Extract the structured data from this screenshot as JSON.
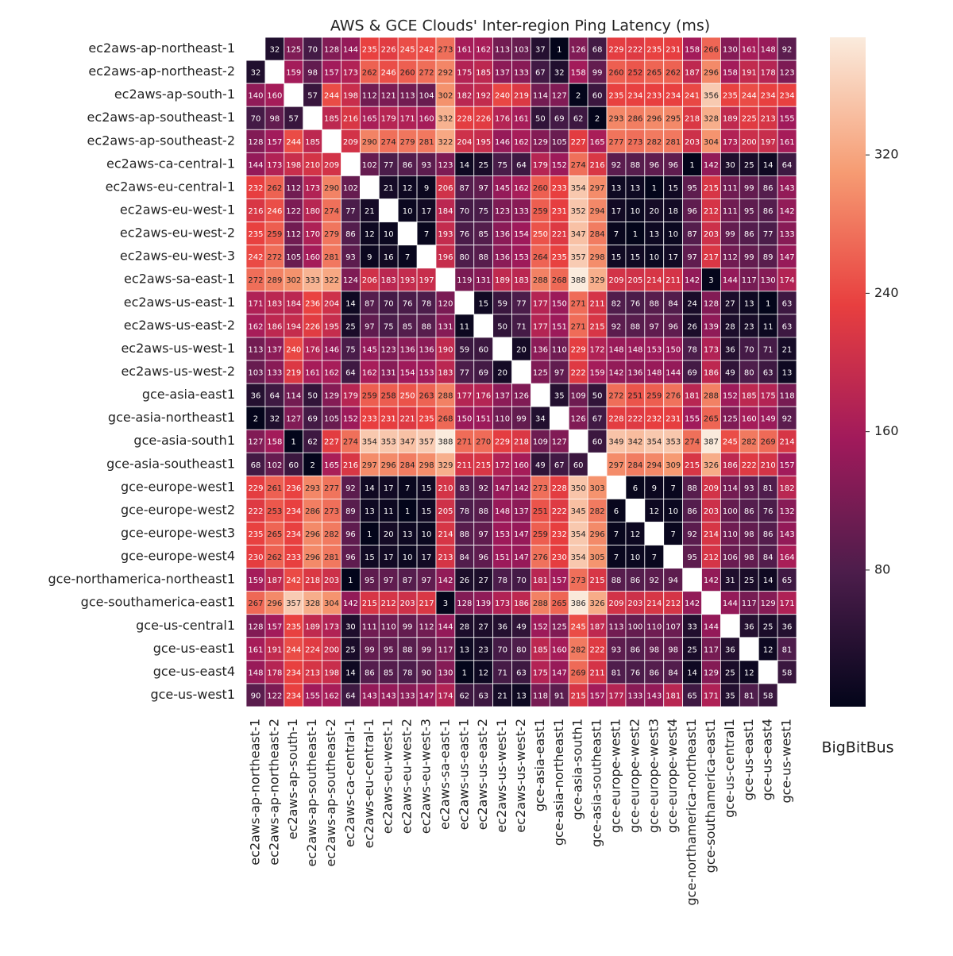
{
  "chart_data": {
    "type": "heatmap",
    "title": "AWS & GCE Clouds' Inter-region Ping Latency (ms)",
    "annotation": "BigBitBus",
    "categories": [
      "ec2aws-ap-northeast-1",
      "ec2aws-ap-northeast-2",
      "ec2aws-ap-south-1",
      "ec2aws-ap-southeast-1",
      "ec2aws-ap-southeast-2",
      "ec2aws-ca-central-1",
      "ec2aws-eu-central-1",
      "ec2aws-eu-west-1",
      "ec2aws-eu-west-2",
      "ec2aws-eu-west-3",
      "ec2aws-sa-east-1",
      "ec2aws-us-east-1",
      "ec2aws-us-east-2",
      "ec2aws-us-west-1",
      "ec2aws-us-west-2",
      "gce-asia-east1",
      "gce-asia-northeast1",
      "gce-asia-south1",
      "gce-asia-southeast1",
      "gce-europe-west1",
      "gce-europe-west2",
      "gce-europe-west3",
      "gce-europe-west4",
      "gce-northamerica-northeast1",
      "gce-southamerica-east1",
      "gce-us-central1",
      "gce-us-east1",
      "gce-us-east4",
      "gce-us-west1"
    ],
    "values": [
      [
        null,
        32,
        125,
        70,
        128,
        144,
        235,
        226,
        245,
        242,
        273,
        161,
        162,
        113,
        103,
        37,
        1,
        126,
        68,
        229,
        222,
        235,
        231,
        158,
        266,
        130,
        161,
        148,
        92
      ],
      [
        32,
        null,
        159,
        98,
        157,
        173,
        262,
        246,
        260,
        272,
        292,
        175,
        185,
        137,
        133,
        67,
        32,
        158,
        99,
        260,
        252,
        265,
        262,
        187,
        296,
        158,
        191,
        178,
        123
      ],
      [
        140,
        160,
        null,
        57,
        244,
        198,
        112,
        121,
        113,
        104,
        302,
        182,
        192,
        240,
        219,
        114,
        127,
        2,
        60,
        235,
        234,
        233,
        234,
        241,
        356,
        235,
        244,
        234,
        234
      ],
      [
        70,
        98,
        57,
        null,
        185,
        216,
        165,
        179,
        171,
        160,
        332,
        228,
        226,
        176,
        161,
        50,
        69,
        62,
        2,
        293,
        286,
        296,
        295,
        218,
        328,
        189,
        225,
        213,
        155
      ],
      [
        128,
        157,
        244,
        185,
        null,
        209,
        290,
        274,
        279,
        281,
        322,
        204,
        195,
        146,
        162,
        129,
        105,
        227,
        165,
        277,
        273,
        282,
        281,
        203,
        304,
        173,
        200,
        197,
        161
      ],
      [
        144,
        173,
        198,
        210,
        209,
        null,
        102,
        77,
        86,
        93,
        123,
        14,
        25,
        75,
        64,
        179,
        152,
        274,
        216,
        92,
        88,
        96,
        96,
        1,
        142,
        30,
        25,
        14,
        64
      ],
      [
        232,
        262,
        112,
        173,
        290,
        102,
        null,
        21,
        12,
        9,
        206,
        87,
        97,
        145,
        162,
        260,
        233,
        354,
        297,
        13,
        13,
        1,
        15,
        95,
        215,
        111,
        99,
        86,
        143
      ],
      [
        216,
        246,
        122,
        180,
        274,
        77,
        21,
        null,
        10,
        17,
        184,
        70,
        75,
        123,
        133,
        259,
        231,
        352,
        294,
        17,
        10,
        20,
        18,
        96,
        212,
        111,
        95,
        86,
        142
      ],
      [
        235,
        259,
        112,
        170,
        279,
        86,
        12,
        10,
        null,
        7,
        193,
        76,
        85,
        136,
        154,
        250,
        221,
        347,
        284,
        7,
        1,
        13,
        10,
        87,
        203,
        99,
        86,
        77,
        133
      ],
      [
        242,
        272,
        105,
        160,
        281,
        93,
        9,
        16,
        7,
        null,
        196,
        80,
        88,
        136,
        153,
        264,
        235,
        357,
        298,
        15,
        15,
        10,
        17,
        97,
        217,
        112,
        99,
        89,
        147
      ],
      [
        272,
        289,
        302,
        333,
        322,
        124,
        206,
        183,
        193,
        197,
        null,
        119,
        131,
        189,
        183,
        288,
        268,
        388,
        329,
        209,
        205,
        214,
        211,
        142,
        3,
        144,
        117,
        130,
        174
      ],
      [
        171,
        183,
        184,
        236,
        204,
        14,
        87,
        70,
        76,
        78,
        120,
        null,
        15,
        59,
        77,
        177,
        150,
        271,
        211,
        82,
        76,
        88,
        84,
        24,
        128,
        27,
        13,
        1,
        63
      ],
      [
        162,
        186,
        194,
        226,
        195,
        25,
        97,
        75,
        85,
        88,
        131,
        11,
        null,
        50,
        71,
        177,
        151,
        271,
        215,
        92,
        88,
        97,
        96,
        26,
        139,
        28,
        23,
        11,
        63
      ],
      [
        113,
        137,
        240,
        176,
        146,
        75,
        145,
        123,
        136,
        136,
        190,
        59,
        60,
        null,
        20,
        136,
        110,
        229,
        172,
        148,
        148,
        153,
        150,
        78,
        173,
        36,
        70,
        71,
        21
      ],
      [
        103,
        133,
        219,
        161,
        162,
        64,
        162,
        131,
        154,
        153,
        183,
        77,
        69,
        20,
        null,
        125,
        97,
        222,
        159,
        142,
        136,
        148,
        144,
        69,
        186,
        49,
        80,
        63,
        13
      ],
      [
        36,
        64,
        114,
        50,
        129,
        179,
        259,
        258,
        250,
        263,
        288,
        177,
        176,
        137,
        126,
        null,
        35,
        109,
        50,
        272,
        251,
        259,
        276,
        181,
        288,
        152,
        185,
        175,
        118
      ],
      [
        2,
        32,
        127,
        69,
        105,
        152,
        233,
        231,
        221,
        235,
        268,
        150,
        151,
        110,
        99,
        34,
        null,
        126,
        67,
        228,
        222,
        232,
        231,
        155,
        265,
        125,
        160,
        149,
        92
      ],
      [
        127,
        158,
        1,
        62,
        227,
        274,
        354,
        353,
        347,
        357,
        388,
        271,
        270,
        229,
        218,
        109,
        127,
        null,
        60,
        349,
        342,
        354,
        353,
        274,
        387,
        245,
        282,
        269,
        214
      ],
      [
        68,
        102,
        60,
        2,
        165,
        216,
        297,
        296,
        284,
        298,
        329,
        211,
        215,
        172,
        160,
        49,
        67,
        60,
        null,
        297,
        284,
        294,
        309,
        215,
        326,
        186,
        222,
        210,
        157
      ],
      [
        229,
        261,
        236,
        293,
        277,
        92,
        14,
        17,
        7,
        15,
        210,
        83,
        92,
        147,
        142,
        273,
        228,
        350,
        303,
        null,
        6,
        9,
        7,
        88,
        209,
        114,
        93,
        81,
        182
      ],
      [
        222,
        253,
        234,
        286,
        273,
        89,
        13,
        11,
        1,
        15,
        205,
        78,
        88,
        148,
        137,
        251,
        222,
        345,
        282,
        6,
        null,
        12,
        10,
        86,
        203,
        100,
        86,
        76,
        132
      ],
      [
        235,
        265,
        234,
        296,
        282,
        96,
        1,
        20,
        13,
        10,
        214,
        88,
        97,
        153,
        147,
        259,
        232,
        354,
        296,
        7,
        12,
        null,
        7,
        92,
        214,
        110,
        98,
        86,
        143
      ],
      [
        230,
        262,
        233,
        296,
        281,
        96,
        15,
        17,
        10,
        17,
        213,
        84,
        96,
        151,
        147,
        276,
        230,
        354,
        305,
        7,
        10,
        7,
        null,
        95,
        212,
        106,
        98,
        84,
        164
      ],
      [
        159,
        187,
        242,
        218,
        203,
        1,
        95,
        97,
        87,
        97,
        142,
        26,
        27,
        78,
        70,
        181,
        157,
        273,
        215,
        88,
        86,
        92,
        94,
        null,
        142,
        31,
        25,
        14,
        65
      ],
      [
        267,
        296,
        357,
        328,
        304,
        142,
        215,
        212,
        203,
        217,
        3,
        128,
        139,
        173,
        186,
        288,
        265,
        386,
        326,
        209,
        203,
        214,
        212,
        142,
        null,
        144,
        117,
        129,
        171
      ],
      [
        128,
        157,
        235,
        189,
        173,
        30,
        111,
        110,
        99,
        112,
        144,
        28,
        27,
        36,
        49,
        152,
        125,
        245,
        187,
        113,
        100,
        110,
        107,
        33,
        144,
        null,
        36,
        25,
        36
      ],
      [
        161,
        191,
        244,
        224,
        200,
        25,
        99,
        95,
        88,
        99,
        117,
        13,
        23,
        70,
        80,
        185,
        160,
        282,
        222,
        93,
        86,
        98,
        98,
        25,
        117,
        36,
        null,
        12,
        81
      ],
      [
        148,
        178,
        234,
        213,
        198,
        14,
        86,
        85,
        78,
        90,
        130,
        1,
        12,
        71,
        63,
        175,
        147,
        269,
        211,
        81,
        76,
        86,
        84,
        14,
        129,
        25,
        12,
        null,
        58
      ],
      [
        90,
        122,
        234,
        155,
        162,
        64,
        143,
        143,
        133,
        147,
        174,
        62,
        63,
        21,
        13,
        118,
        91,
        215,
        157,
        177,
        133,
        143,
        181,
        65,
        171,
        35,
        81,
        58,
        null
      ]
    ],
    "clim": [
      1,
      388
    ],
    "cticks": [
      80,
      160,
      240,
      320
    ],
    "colorscale": [
      "#03051a",
      "#4c1d4b",
      "#a11a5b",
      "#e83f3f",
      "#f69c73",
      "#faebdd"
    ]
  }
}
